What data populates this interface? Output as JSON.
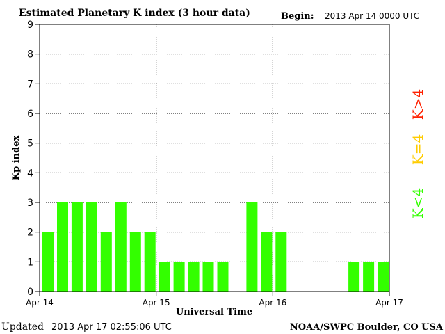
{
  "header": {
    "title": "Estimated Planetary K index (3 hour data)",
    "begin_label": "Begin:",
    "begin_value": "2013 Apr 14 0000 UTC"
  },
  "footer": {
    "updated_label": "Updated",
    "updated_value": "2013 Apr 17 02:55:06 UTC",
    "source": "NOAA/SWPC Boulder, CO USA"
  },
  "legend": [
    {
      "label": "K>4",
      "color": "#ff2000"
    },
    {
      "label": "K=4",
      "color": "#ffcc00"
    },
    {
      "label": "K<4",
      "color": "#33ff00"
    }
  ],
  "chart_data": {
    "type": "bar",
    "title": "Estimated Planetary K index (3 hour data)",
    "xlabel": "Universal Time",
    "ylabel": "Kp index",
    "ylim": [
      0,
      9
    ],
    "yticks": [
      "0",
      "1",
      "2",
      "3",
      "4",
      "5",
      "6",
      "7",
      "8",
      "9"
    ],
    "xticks": [
      "Apr 14",
      "Apr 15",
      "Apr 16",
      "Apr 17"
    ],
    "grid": true,
    "categories": [
      "Apr 14 00",
      "Apr 14 03",
      "Apr 14 06",
      "Apr 14 09",
      "Apr 14 12",
      "Apr 14 15",
      "Apr 14 18",
      "Apr 14 21",
      "Apr 15 00",
      "Apr 15 03",
      "Apr 15 06",
      "Apr 15 09",
      "Apr 15 12",
      "Apr 15 15",
      "Apr 15 18",
      "Apr 15 21",
      "Apr 16 00",
      "Apr 16 03",
      "Apr 16 06",
      "Apr 16 09",
      "Apr 16 12",
      "Apr 16 15",
      "Apr 16 18",
      "Apr 16 21"
    ],
    "values": [
      2,
      3,
      3,
      3,
      2,
      3,
      2,
      2,
      1,
      1,
      1,
      1,
      1,
      null,
      3,
      2,
      2,
      null,
      null,
      null,
      null,
      1,
      1,
      1
    ],
    "bar_color": "#33ff00"
  }
}
